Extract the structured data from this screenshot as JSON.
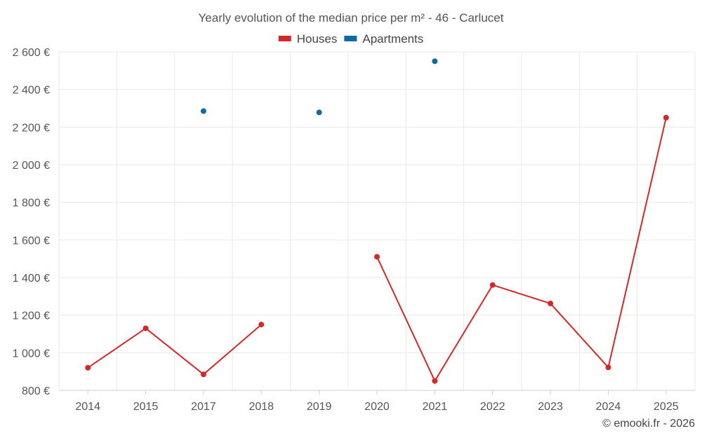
{
  "chart_data": {
    "type": "line",
    "title": "Yearly evolution of the median price per m² - 46 - Carlucet",
    "categories": [
      "2014",
      "2015",
      "2017",
      "2018",
      "2019",
      "2020",
      "2021",
      "2022",
      "2023",
      "2024",
      "2025"
    ],
    "series": [
      {
        "name": "Houses",
        "color": "#d62728",
        "values": [
          920,
          1130,
          885,
          1150,
          null,
          1510,
          850,
          1360,
          1262,
          922,
          2250
        ]
      },
      {
        "name": "Apartments",
        "color": "#0e6aa1",
        "values": [
          null,
          null,
          2285,
          null,
          2278,
          null,
          2550,
          null,
          null,
          null,
          null
        ]
      }
    ],
    "ylim": [
      800,
      2600
    ],
    "yticks": [
      800,
      1000,
      1200,
      1400,
      1600,
      1800,
      2000,
      2200,
      2400,
      2600
    ],
    "ytick_labels": [
      "800 €",
      "1 000 €",
      "1 200 €",
      "1 400 €",
      "1 600 €",
      "1 800 €",
      "2 000 €",
      "2 200 €",
      "2 400 €",
      "2 600 €"
    ],
    "grid": true,
    "legend_position": "top-center",
    "xlabel": "",
    "ylabel": ""
  },
  "credit": "© emooki.fr - 2026"
}
